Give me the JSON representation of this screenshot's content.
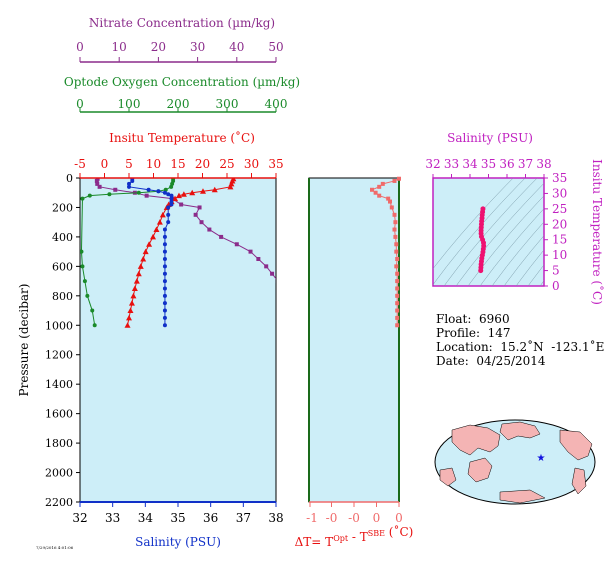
{
  "colors": {
    "nitrate": "#8b2c8b",
    "oxygen": "#1a8a2a",
    "temperature": "#e8100f",
    "salinity": "#1030c8",
    "delta_t": "#f06a6a",
    "salinity_ts": "#c020c0",
    "ts_points": "#ee1070",
    "panel_bg": "#cdeef8",
    "land": "#f4b4b4",
    "star": "#1010e0"
  },
  "chart_data": [
    {
      "type": "line",
      "name": "profile",
      "axes": {
        "nitrate": {
          "label": "Nitrate Concentration (µm/kg)",
          "range": [
            0,
            50
          ],
          "ticks": [
            "0",
            "10",
            "20",
            "30",
            "40",
            "50"
          ]
        },
        "oxygen": {
          "label": "Optode Oxygen Concentration (µm/kg)",
          "range": [
            0,
            400
          ],
          "ticks": [
            "0",
            "100",
            "200",
            "300",
            "400"
          ]
        },
        "temperature": {
          "label": "Insitu Temperature (˚C)",
          "range": [
            -5,
            35
          ],
          "ticks": [
            "-5",
            "0",
            "5",
            "10",
            "15",
            "20",
            "25",
            "30",
            "35"
          ]
        },
        "salinity": {
          "label": "Salinity (PSU)",
          "range": [
            32,
            38
          ],
          "ticks": [
            "32",
            "33",
            "34",
            "35",
            "36",
            "37",
            "38"
          ]
        },
        "pressure": {
          "label": "Pressure (decibar)",
          "range": [
            0,
            2200
          ],
          "ticks": [
            "0",
            "200",
            "400",
            "600",
            "800",
            "1000",
            "1200",
            "1400",
            "1600",
            "1800",
            "2000",
            "2200"
          ]
        }
      },
      "series": {
        "temperature": [
          [
            5,
            26.3
          ],
          [
            20,
            26.1
          ],
          [
            40,
            25.9
          ],
          [
            60,
            25.7
          ],
          [
            80,
            22.5
          ],
          [
            90,
            20.1
          ],
          [
            100,
            17.9
          ],
          [
            110,
            16.2
          ],
          [
            120,
            15.2
          ],
          [
            140,
            14.4
          ],
          [
            160,
            13.7
          ],
          [
            180,
            13.1
          ],
          [
            200,
            12.7
          ],
          [
            250,
            11.9
          ],
          [
            300,
            11.3
          ],
          [
            350,
            10.6
          ],
          [
            400,
            9.9
          ],
          [
            450,
            9.1
          ],
          [
            500,
            8.4
          ],
          [
            550,
            7.9
          ],
          [
            600,
            7.4
          ],
          [
            650,
            7.0
          ],
          [
            700,
            6.6
          ],
          [
            750,
            6.2
          ],
          [
            800,
            5.9
          ],
          [
            850,
            5.6
          ],
          [
            900,
            5.3
          ],
          [
            950,
            5.0
          ],
          [
            1000,
            4.7
          ]
        ],
        "salinity": [
          [
            5,
            33.6
          ],
          [
            20,
            33.6
          ],
          [
            40,
            33.5
          ],
          [
            60,
            33.5
          ],
          [
            80,
            34.1
          ],
          [
            90,
            34.4
          ],
          [
            100,
            34.6
          ],
          [
            110,
            34.7
          ],
          [
            120,
            34.8
          ],
          [
            140,
            34.8
          ],
          [
            160,
            34.8
          ],
          [
            180,
            34.8
          ],
          [
            200,
            34.7
          ],
          [
            250,
            34.7
          ],
          [
            300,
            34.7
          ],
          [
            350,
            34.6
          ],
          [
            400,
            34.6
          ],
          [
            450,
            34.6
          ],
          [
            500,
            34.6
          ],
          [
            550,
            34.6
          ],
          [
            600,
            34.6
          ],
          [
            650,
            34.6
          ],
          [
            700,
            34.6
          ],
          [
            750,
            34.6
          ],
          [
            800,
            34.6
          ],
          [
            850,
            34.6
          ],
          [
            900,
            34.6
          ],
          [
            950,
            34.6
          ],
          [
            1000,
            34.6
          ]
        ],
        "oxygen": [
          [
            5,
            190
          ],
          [
            20,
            190
          ],
          [
            40,
            188
          ],
          [
            60,
            186
          ],
          [
            80,
            175
          ],
          [
            90,
            160
          ],
          [
            100,
            120
          ],
          [
            110,
            60
          ],
          [
            120,
            20
          ],
          [
            140,
            5
          ],
          [
            500,
            3
          ],
          [
            600,
            5
          ],
          [
            700,
            10
          ],
          [
            800,
            15
          ],
          [
            900,
            25
          ],
          [
            1000,
            30
          ]
        ],
        "nitrate": [
          [
            5,
            4.5
          ],
          [
            20,
            4.3
          ],
          [
            40,
            4.4
          ],
          [
            60,
            5.0
          ],
          [
            80,
            9.0
          ],
          [
            100,
            14.0
          ],
          [
            120,
            17.0
          ],
          [
            140,
            23.5
          ],
          [
            180,
            25.8
          ],
          [
            200,
            30.5
          ],
          [
            250,
            29.5
          ],
          [
            300,
            31.0
          ],
          [
            350,
            33.0
          ],
          [
            400,
            36.0
          ],
          [
            450,
            40.0
          ],
          [
            500,
            43.5
          ],
          [
            550,
            45.5
          ],
          [
            600,
            47.5
          ],
          [
            650,
            49.0
          ],
          [
            700,
            50.5
          ]
        ]
      }
    },
    {
      "type": "line",
      "name": "delta-t",
      "xlabel": "ΔT= T",
      "xlabel_sup1": "Opt",
      "xlabel_mid": " - T",
      "xlabel_sup2": "SBE",
      "xlabel_unit": " (˚C)",
      "range": [
        -1,
        0
      ],
      "ticks": [
        "-1",
        "-0",
        "-0",
        "0",
        "0"
      ],
      "values": [
        [
          5,
          0.0
        ],
        [
          20,
          -0.05
        ],
        [
          40,
          -0.18
        ],
        [
          60,
          -0.22
        ],
        [
          80,
          -0.3
        ],
        [
          100,
          -0.26
        ],
        [
          120,
          -0.22
        ],
        [
          140,
          -0.12
        ],
        [
          160,
          -0.1
        ],
        [
          200,
          -0.08
        ],
        [
          250,
          -0.05
        ],
        [
          300,
          -0.04
        ],
        [
          350,
          -0.05
        ],
        [
          400,
          -0.04
        ],
        [
          450,
          -0.03
        ],
        [
          500,
          -0.03
        ],
        [
          550,
          -0.02
        ],
        [
          600,
          -0.03
        ],
        [
          650,
          -0.02
        ],
        [
          700,
          -0.02
        ],
        [
          750,
          -0.02
        ],
        [
          800,
          -0.02
        ],
        [
          850,
          -0.02
        ],
        [
          900,
          -0.02
        ],
        [
          950,
          -0.02
        ],
        [
          1000,
          -0.02
        ]
      ]
    },
    {
      "type": "scatter",
      "name": "ts-diagram",
      "xlabel": "Salinity (PSU)",
      "ylabel": "Insitu Temperature (˚C)",
      "xlim": [
        32,
        38
      ],
      "ylim": [
        0,
        35
      ],
      "xticks": [
        "32",
        "33",
        "34",
        "35",
        "36",
        "37",
        "38"
      ],
      "yticks": [
        "0",
        "5",
        "10",
        "15",
        "20",
        "25",
        "30",
        "35"
      ],
      "values": [
        [
          34.7,
          25
        ],
        [
          34.68,
          24
        ],
        [
          34.66,
          23
        ],
        [
          34.65,
          22
        ],
        [
          34.63,
          21
        ],
        [
          34.62,
          20
        ],
        [
          34.61,
          19
        ],
        [
          34.6,
          18
        ],
        [
          34.6,
          17
        ],
        [
          34.62,
          16
        ],
        [
          34.68,
          15
        ],
        [
          34.73,
          14
        ],
        [
          34.74,
          13
        ],
        [
          34.72,
          12
        ],
        [
          34.7,
          11
        ],
        [
          34.67,
          10
        ],
        [
          34.64,
          9
        ],
        [
          34.62,
          8
        ],
        [
          34.6,
          7
        ],
        [
          34.59,
          6
        ],
        [
          34.58,
          5
        ]
      ]
    }
  ],
  "info": {
    "float": "Float:  6960",
    "profile": "Profile:  147",
    "location": "Location:  15.2˚N  -123.1˚E",
    "date": "Date:  04/25/2014"
  },
  "footer_note": "7/29/2016 4:01:06"
}
